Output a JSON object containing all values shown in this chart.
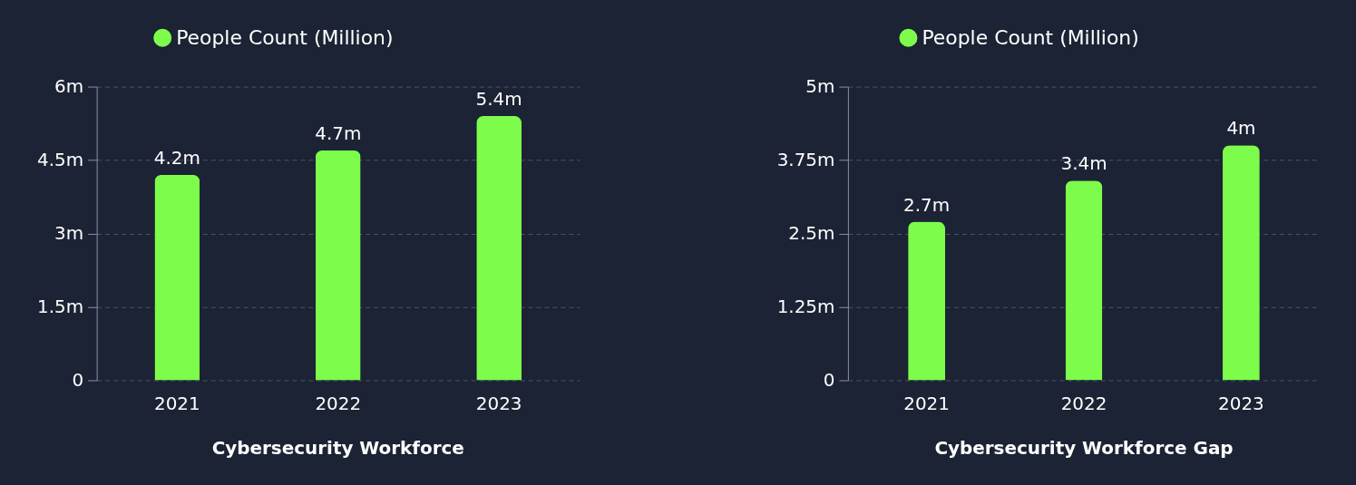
{
  "chart_data": [
    {
      "type": "bar",
      "title": "Cybersecurity Workforce",
      "categories": [
        "2021",
        "2022",
        "2023"
      ],
      "series": [
        {
          "name": "People Count (Million)",
          "color": "#7dfc4b",
          "values": [
            4.2,
            4.7,
            5.4
          ],
          "value_labels": [
            "4.2m",
            "4.7m",
            "5.4m"
          ]
        }
      ],
      "ylim": [
        0,
        6
      ],
      "yticks": [
        0,
        {
          "value": 1.5,
          "label": "1.5m"
        },
        {
          "value": 3,
          "label": "3m"
        },
        {
          "value": 4.5,
          "label": "4.5m"
        },
        {
          "value": 6,
          "label": "6m"
        }
      ],
      "grid": "y",
      "legend": "top"
    },
    {
      "type": "bar",
      "title": "Cybersecurity Workforce Gap",
      "categories": [
        "2021",
        "2022",
        "2023"
      ],
      "series": [
        {
          "name": "People Count (Million)",
          "color": "#7dfc4b",
          "values": [
            2.7,
            3.4,
            4
          ],
          "value_labels": [
            "2.7m",
            "3.4m",
            "4m"
          ]
        }
      ],
      "ylim": [
        0,
        5
      ],
      "yticks": [
        0,
        {
          "value": 1.25,
          "label": "1.25m"
        },
        {
          "value": 2.5,
          "label": "2.5m"
        },
        {
          "value": 3.75,
          "label": "3.75m"
        },
        {
          "value": 5,
          "label": "5m"
        }
      ],
      "grid": "y",
      "legend": "top"
    }
  ]
}
